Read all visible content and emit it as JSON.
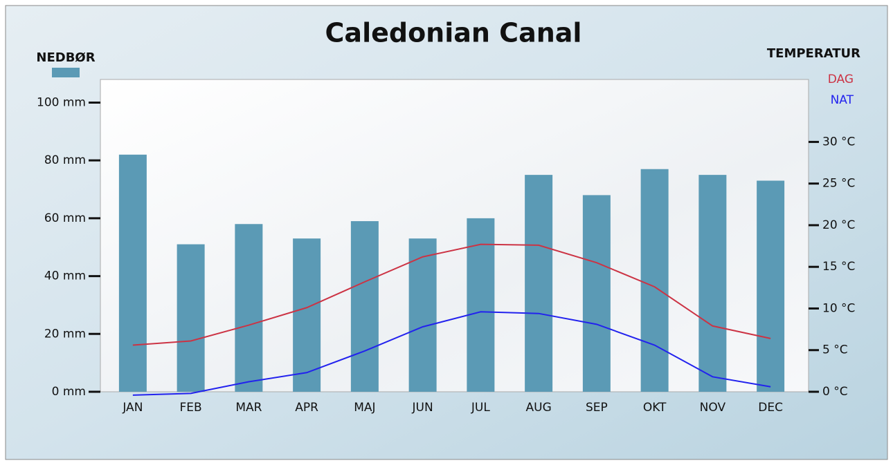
{
  "chart_data": {
    "type": "bar-line",
    "title": "Caledonian Canal",
    "y2label": "TEMPERATUR",
    "categories": [
      "JAN",
      "FEB",
      "MAR",
      "APR",
      "MAJ",
      "JUN",
      "JUL",
      "AUG",
      "SEP",
      "OKT",
      "NOV",
      "DEC"
    ],
    "series": [
      {
        "name": "NEDBØR",
        "type": "bar",
        "color": "#5b9ab5",
        "values": [
          82,
          51,
          58,
          53,
          59,
          53,
          60,
          75,
          68,
          77,
          75,
          73
        ]
      },
      {
        "name": "DAG",
        "type": "line",
        "axis": "y2",
        "color": "#cc3344",
        "values": [
          5.6,
          6.1,
          8,
          10.1,
          13.2,
          16.2,
          17.7,
          17.6,
          15.5,
          12.6,
          7.9,
          6.4
        ]
      },
      {
        "name": "NAT",
        "type": "line",
        "axis": "y2",
        "color": "#2222ee",
        "values": [
          -0.4,
          -0.2,
          1.2,
          2.3,
          4.9,
          7.8,
          9.6,
          9.4,
          8.1,
          5.6,
          1.8,
          0.6
        ]
      }
    ],
    "ylim": [
      0,
      108
    ],
    "yticks": [
      {
        "value": 0,
        "label": "0 mm"
      },
      {
        "value": 20,
        "label": "20 mm"
      },
      {
        "value": 40,
        "label": "40 mm"
      },
      {
        "value": 60,
        "label": "60 mm"
      },
      {
        "value": 80,
        "label": "80 mm"
      },
      {
        "value": 100,
        "label": "100 mm"
      }
    ],
    "y2lim": [
      0,
      37.5
    ],
    "y2ticks": [
      {
        "value": 0,
        "label": "0 °C"
      },
      {
        "value": 5,
        "label": "5 °C"
      },
      {
        "value": 10,
        "label": "10 °C"
      },
      {
        "value": 15,
        "label": "15 °C"
      },
      {
        "value": 20,
        "label": "20 °C"
      },
      {
        "value": 25,
        "label": "25 °C"
      },
      {
        "value": 30,
        "label": "30 °C"
      }
    ]
  }
}
